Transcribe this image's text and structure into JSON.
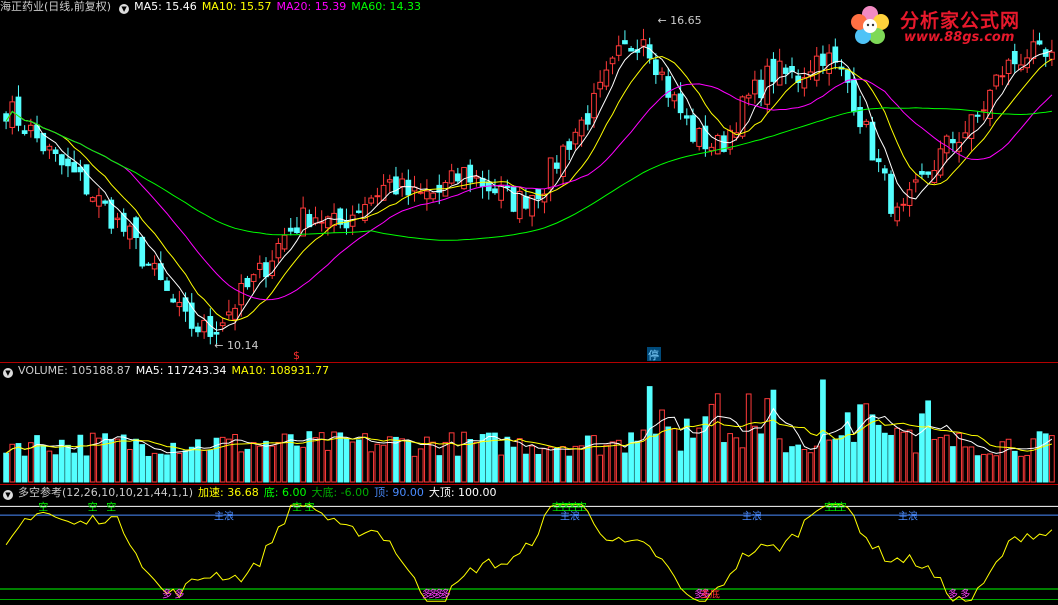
{
  "price_panel": {
    "title": "海正药业(日线,前复权)",
    "ma_labels": [
      {
        "text": "MA5: 15.46",
        "color": "#ffffff"
      },
      {
        "text": "MA10: 15.57",
        "color": "#ffff00"
      },
      {
        "text": "MA20: 15.39",
        "color": "#ff00ff"
      },
      {
        "text": "MA60: 14.33",
        "color": "#00ff00"
      }
    ],
    "high_marker": "16.65",
    "low_marker": "10.14",
    "bottom_flags": [
      "$",
      "停"
    ]
  },
  "volume_panel": {
    "labels": [
      {
        "text": "VOLUME: 105188.87",
        "color": "#cccccc"
      },
      {
        "text": "MA5: 117243.34",
        "color": "#ffffff"
      },
      {
        "text": "MA10: 108931.77",
        "color": "#ffff00"
      }
    ]
  },
  "indicator_panel": {
    "name": "多空参考(12,26,10,10,21,44,1,1)",
    "labels": [
      {
        "text": "加速: 36.68",
        "color": "#ffff00"
      },
      {
        "text": "底: 6.00",
        "color": "#00ff00"
      },
      {
        "text": "大底: -6.00",
        "color": "#00aa00"
      },
      {
        "text": "顶: 90.00",
        "color": "#4a8cff"
      },
      {
        "text": "大顶: 100.00",
        "color": "#ffffff"
      }
    ],
    "top_marker": "空",
    "bottom_marker": "多",
    "top_annotation": "主浪",
    "bottom_annotation": "主底"
  },
  "logo": {
    "title": "分析家公式网",
    "url": "www.88gs.com"
  },
  "colors": {
    "up": "#ff3a3a",
    "down": "#54ffff",
    "ma5": "#ffffff",
    "ma10": "#ffff00",
    "ma20": "#ff00ff",
    "ma60": "#00ff00",
    "divider": "#b40000"
  },
  "chart_data": [
    {
      "type": "candlestick",
      "series_name": "海正药业(日线,前复权)",
      "ylim": [
        10.14,
        16.65
      ],
      "close_approx": [
        14.9,
        14.4,
        13.8,
        13.4,
        12.8,
        12.2,
        11.4,
        10.6,
        10.4,
        11.0,
        11.6,
        12.4,
        12.8,
        12.5,
        13.0,
        13.4,
        13.1,
        13.2,
        13.6,
        13.3,
        13.0,
        13.3,
        14.2,
        14.9,
        15.9,
        16.4,
        15.2,
        14.3,
        14.1,
        15.0,
        15.6,
        15.5,
        16.0,
        15.4,
        14.0,
        12.6,
        13.5,
        14.2,
        14.6,
        15.6,
        16.0,
        15.8
      ],
      "ma_last": {
        "MA5": 15.46,
        "MA10": 15.57,
        "MA20": 15.39,
        "MA60": 14.33
      },
      "high_label": 16.65,
      "low_label": 10.14
    },
    {
      "type": "bar",
      "series_name": "VOLUME",
      "last": {
        "VOLUME": 105188.87,
        "MA5": 117243.34,
        "MA10": 108931.77
      }
    },
    {
      "type": "line",
      "series_name": "多空参考",
      "last": {
        "加速": 36.68,
        "底": 6.0,
        "大底": -6.0,
        "顶": 90.0,
        "大顶": 100.0
      },
      "reference_lines": [
        6.0,
        -6.0,
        90.0,
        100.0
      ]
    }
  ]
}
